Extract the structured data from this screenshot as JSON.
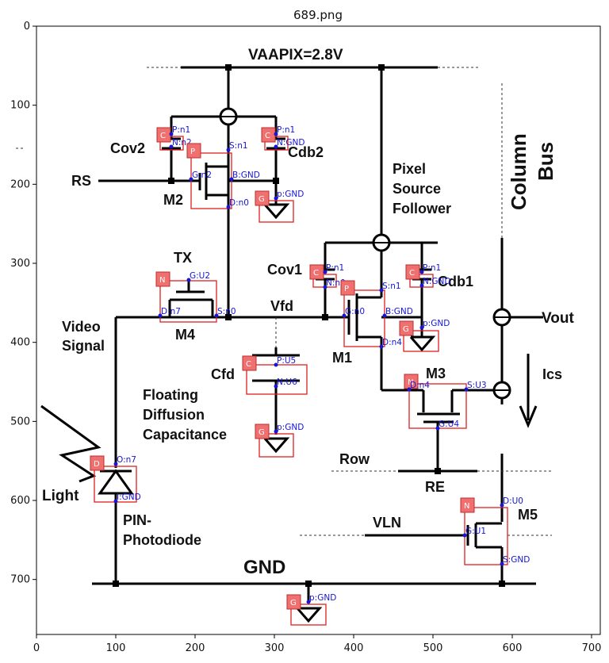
{
  "figure": {
    "title": "689.png",
    "x_ticks": [
      "0",
      "100",
      "200",
      "300",
      "400",
      "500",
      "600",
      "700"
    ],
    "y_ticks": [
      "0",
      "100",
      "200",
      "300",
      "400",
      "500",
      "600",
      "700"
    ]
  },
  "circuit": {
    "supply": "VAAPIX=2.8V",
    "ground": "GND",
    "column_bus": [
      "Column",
      "Bus"
    ],
    "labels": {
      "cov2": "Cov2",
      "cdb2": "Cdb2",
      "rs": "RS",
      "m2": "M2",
      "tx": "TX",
      "m4": "M4",
      "video": [
        "Video",
        "Signal"
      ],
      "cov1": "Cov1",
      "cdb1": "Cdb1",
      "vfd": "Vfd",
      "m1": "M1",
      "psf": [
        "Pixel",
        "Source",
        "Follower"
      ],
      "vout": "Vout",
      "cfd": "Cfd",
      "fd": [
        "Floating",
        "Diffusion",
        "Capacitance"
      ],
      "m3": "M3",
      "ics": "Ics",
      "row": "Row",
      "re": "RE",
      "light": "Light",
      "pin": [
        "PIN-",
        "Photodiode"
      ],
      "vln": "VLN",
      "m5": "M5"
    }
  },
  "annotations": [
    {
      "id": "cov2",
      "tag": "C",
      "pins": [
        "P:n1",
        "N:n2"
      ]
    },
    {
      "id": "cdb2",
      "tag": "C",
      "pins": [
        "P:n1",
        "N:GND"
      ]
    },
    {
      "id": "m2",
      "tag": "P",
      "pins": [
        "S:n1",
        "G:n2",
        "B:GND",
        "D:n0"
      ]
    },
    {
      "id": "g1",
      "tag": "G",
      "pins": [
        "p:GND"
      ]
    },
    {
      "id": "m4",
      "tag": "N",
      "pins": [
        "G:U2",
        "D:n7",
        "S:n0"
      ]
    },
    {
      "id": "cov1",
      "tag": "C",
      "pins": [
        "P:n1",
        "N:n0"
      ]
    },
    {
      "id": "cdb1",
      "tag": "C",
      "pins": [
        "P:n1",
        "N:GND"
      ]
    },
    {
      "id": "m1",
      "tag": "P",
      "pins": [
        "S:n1",
        "G:n0",
        "B:GND",
        "D:n4"
      ]
    },
    {
      "id": "g2",
      "tag": "G",
      "pins": [
        "p:GND"
      ]
    },
    {
      "id": "cfd",
      "tag": "C",
      "pins": [
        "P:U5",
        "N:U6"
      ]
    },
    {
      "id": "m3",
      "tag": "N",
      "pins": [
        "D:n4",
        "S:U3",
        "G:U4"
      ]
    },
    {
      "id": "g3",
      "tag": "G",
      "pins": [
        "p:GND"
      ]
    },
    {
      "id": "pd",
      "tag": "D",
      "pins": [
        "O:n7",
        "I:GND"
      ]
    },
    {
      "id": "m5",
      "tag": "N",
      "pins": [
        "D:U0",
        "G:U1",
        "S:GND"
      ]
    },
    {
      "id": "g4",
      "tag": "G",
      "pins": [
        "p:GND"
      ]
    }
  ],
  "colors": {
    "annotation_box": "#e02020",
    "annotation_tag": "#f07070",
    "annotation_text": "#1515d8",
    "wire": "#000000"
  }
}
